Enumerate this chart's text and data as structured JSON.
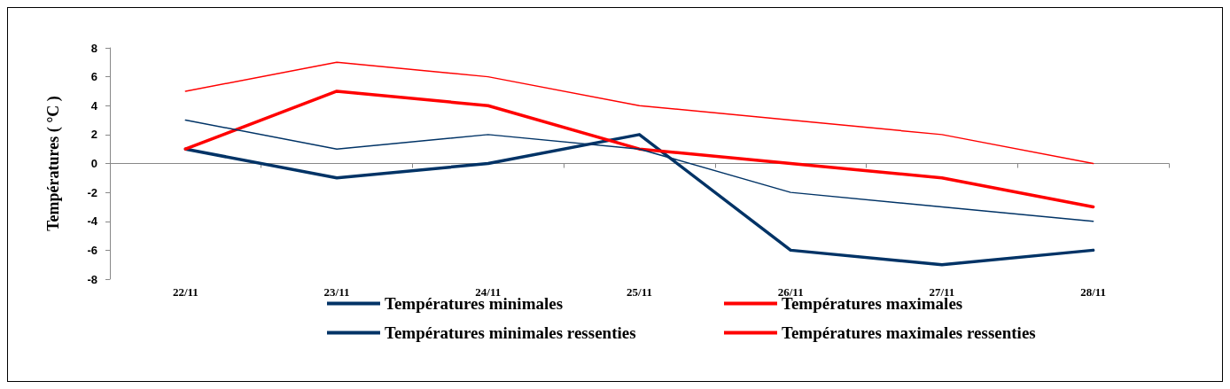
{
  "chart_data": {
    "type": "line",
    "ylabel": "Températures ( °C )",
    "categories": [
      "22/11",
      "23/11",
      "24/11",
      "25/11",
      "26/11",
      "27/11",
      "28/11"
    ],
    "series": [
      {
        "name": "Températures minimales",
        "color": "#003366",
        "values": [
          3,
          1,
          2,
          1,
          -2,
          -3,
          -4
        ]
      },
      {
        "name": "Températures maximales",
        "color": "#ff0000",
        "values": [
          5,
          7,
          6,
          4,
          3,
          2,
          0
        ]
      },
      {
        "name": "Températures minimales ressenties",
        "color": "#003366",
        "values": [
          1,
          -1,
          0,
          2,
          -6,
          -7,
          -6
        ]
      },
      {
        "name": "Températures maximales ressenties",
        "color": "#ff0000",
        "values": [
          1,
          5,
          4,
          1,
          0,
          -1,
          -3
        ]
      }
    ],
    "ylim": [
      -8,
      8
    ],
    "yticks": [
      -8,
      -6,
      -4,
      -2,
      0,
      2,
      4,
      6,
      8
    ],
    "legend": "bottom",
    "marker": "none",
    "line_style": "solid"
  }
}
